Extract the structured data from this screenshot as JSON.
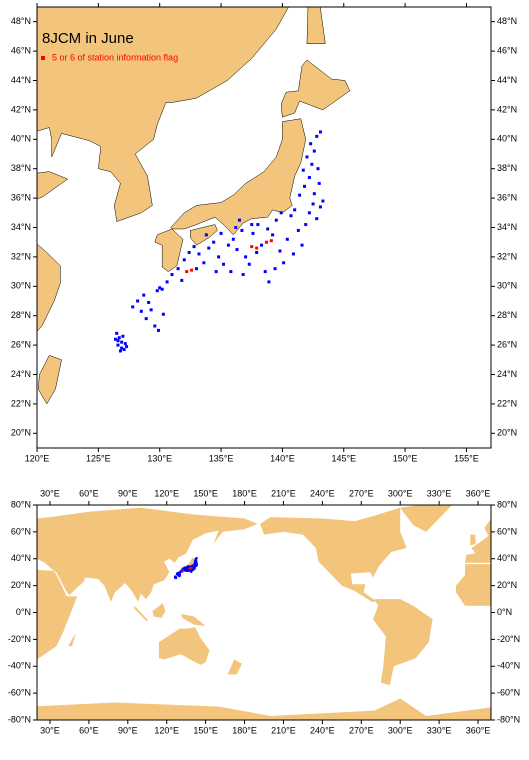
{
  "chart_data": [
    {
      "type": "map",
      "title": "8JCM in June",
      "land_color": "#f2c47c",
      "xlim": [
        120,
        157
      ],
      "ylim": [
        19,
        49
      ],
      "xticks": [
        {
          "value": 120,
          "label": "120°E"
        },
        {
          "value": 125,
          "label": "125°E"
        },
        {
          "value": 130,
          "label": "130°E"
        },
        {
          "value": 135,
          "label": "135°E"
        },
        {
          "value": 140,
          "label": "140°E"
        },
        {
          "value": 145,
          "label": "145°E"
        },
        {
          "value": 150,
          "label": "150°E"
        },
        {
          "value": 155,
          "label": "155°E"
        }
      ],
      "yticks": [
        {
          "value": 20,
          "label": "20°N"
        },
        {
          "value": 22,
          "label": "22°N"
        },
        {
          "value": 24,
          "label": "24°N"
        },
        {
          "value": 26,
          "label": "26°N"
        },
        {
          "value": 28,
          "label": "28°N"
        },
        {
          "value": 30,
          "label": "30°N"
        },
        {
          "value": 32,
          "label": "32°N"
        },
        {
          "value": 34,
          "label": "34°N"
        },
        {
          "value": 36,
          "label": "36°N"
        },
        {
          "value": 38,
          "label": "38°N"
        },
        {
          "value": 40,
          "label": "40°N"
        },
        {
          "value": 42,
          "label": "42°N"
        },
        {
          "value": 44,
          "label": "44°N"
        },
        {
          "value": 46,
          "label": "46°N"
        },
        {
          "value": 48,
          "label": "48°N"
        }
      ],
      "series": [
        {
          "color": "#0000ff",
          "x": [
            126.5,
            126.7,
            126.9,
            126.6,
            126.9,
            127.1,
            126.8,
            127.2,
            126.6,
            127,
            126.4,
            127.3,
            127.8,
            128.2,
            128.5,
            128.9,
            129.3,
            129.6,
            129.8,
            130,
            128.7,
            129.1,
            130.3,
            129.9,
            130.2,
            130.6,
            131,
            131.5,
            132,
            132.4,
            132.8,
            133.2,
            133.6,
            134,
            134.4,
            134.8,
            135.2,
            135.6,
            136,
            136.3,
            136.7,
            137,
            137.3,
            137.6,
            138,
            138.3,
            138.6,
            138.9,
            139.2,
            139.5,
            139.8,
            140.1,
            140.4,
            140.7,
            141,
            141.3,
            141.6,
            141.9,
            142.2,
            142.5,
            142.8,
            143.1,
            143.3,
            141.4,
            141.8,
            142.2,
            141.7,
            142.4,
            142,
            142.6,
            142.3,
            142.8,
            143.1,
            142.9,
            143,
            142.6,
            137.5,
            136.2,
            135,
            133.8,
            134.6,
            133,
            131.8,
            136.8,
            139.4,
            137.9,
            135.8,
            138.8,
            140.9,
            139.9,
            136.5
          ],
          "values": [
            26.8,
            26.5,
            26.2,
            26,
            25.8,
            25.7,
            25.6,
            26.1,
            26.3,
            26.6,
            26.4,
            25.9,
            28.6,
            29,
            28.3,
            27.8,
            28.4,
            27.3,
            29.7,
            29.9,
            29.4,
            28.9,
            28.1,
            27,
            29.8,
            30.3,
            30.8,
            31.2,
            31.8,
            32.3,
            32.7,
            32.2,
            31.6,
            32.6,
            33,
            32,
            31.5,
            32.8,
            33.2,
            32.5,
            33.8,
            32,
            31.5,
            33.6,
            34.2,
            32.8,
            31,
            30.3,
            33.5,
            34.5,
            32.4,
            31.6,
            33.2,
            34.8,
            35.2,
            33.8,
            32.8,
            34.2,
            35,
            35.6,
            34.6,
            35.4,
            35.8,
            36.2,
            36.8,
            37.4,
            37.9,
            38.3,
            38.8,
            39.2,
            39.7,
            40.2,
            40.5,
            38,
            37,
            36.3,
            34.2,
            34,
            33.6,
            33.5,
            31,
            31.2,
            30.4,
            30.8,
            31.2,
            32.3,
            31,
            33.9,
            32.2,
            35,
            34.5
          ]
        },
        {
          "name": "5 or 6 of station information flag",
          "color": "#ff0000",
          "x": [
            132.2,
            132.6,
            137.5,
            137.9,
            138.7,
            139.1
          ],
          "values": [
            31,
            31.1,
            32.7,
            32.6,
            33,
            33.1
          ]
        }
      ]
    },
    {
      "type": "map",
      "xlim": [
        20,
        370
      ],
      "ylim": [
        -80,
        80
      ],
      "xticks": [
        {
          "value": 30,
          "label": "30°E"
        },
        {
          "value": 60,
          "label": "60°E"
        },
        {
          "value": 90,
          "label": "90°E"
        },
        {
          "value": 120,
          "label": "120°E"
        },
        {
          "value": 150,
          "label": "150°E"
        },
        {
          "value": 180,
          "label": "180°E"
        },
        {
          "value": 210,
          "label": "210°E"
        },
        {
          "value": 240,
          "label": "240°E"
        },
        {
          "value": 270,
          "label": "270°E"
        },
        {
          "value": 300,
          "label": "300°E"
        },
        {
          "value": 330,
          "label": "330°E"
        },
        {
          "value": 360,
          "label": "360°E"
        }
      ],
      "yticks": [
        {
          "value": -80,
          "label": "-80°N"
        },
        {
          "value": -60,
          "label": "-60°N"
        },
        {
          "value": -40,
          "label": "-40°N"
        },
        {
          "value": -20,
          "label": "-20°N"
        },
        {
          "value": 0,
          "label": "0°N"
        },
        {
          "value": 20,
          "label": "20°N"
        },
        {
          "value": 40,
          "label": "40°N"
        },
        {
          "value": 60,
          "label": "60°N"
        },
        {
          "value": 80,
          "label": "80°N"
        }
      ]
    }
  ]
}
